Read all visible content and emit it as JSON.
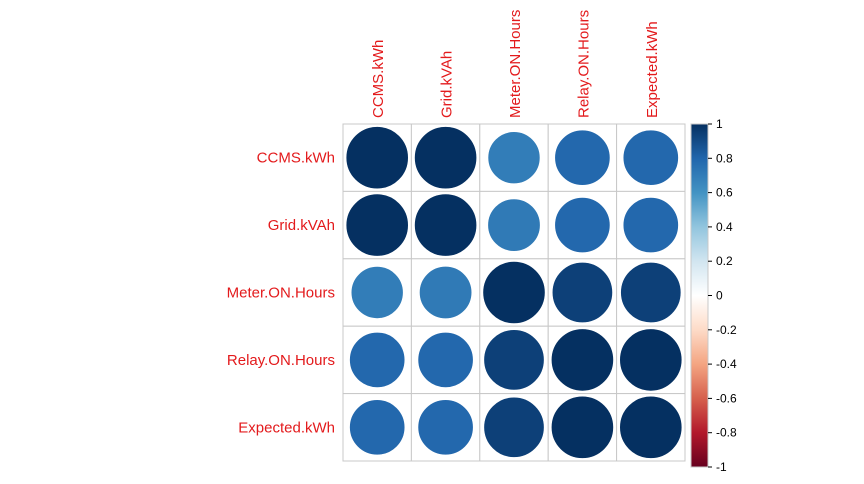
{
  "chart_data": {
    "type": "heatmap",
    "title": "",
    "variables": [
      "CCMS.kWh",
      "Grid.kVAh",
      "Meter.ON.Hours",
      "Relay.ON.Hours",
      "Expected.kWh"
    ],
    "matrix": [
      [
        1.0,
        1.0,
        0.7,
        0.79,
        0.79
      ],
      [
        1.0,
        1.0,
        0.71,
        0.79,
        0.79
      ],
      [
        0.7,
        0.71,
        1.0,
        0.94,
        0.94
      ],
      [
        0.79,
        0.79,
        0.94,
        1.0,
        1.0
      ],
      [
        0.79,
        0.79,
        0.94,
        1.0,
        1.0
      ]
    ],
    "value_range": [
      -1,
      1
    ],
    "colorbar": {
      "ticks": [
        "1",
        "0.8",
        "0.6",
        "0.4",
        "0.2",
        "0",
        "-0.2",
        "-0.4",
        "-0.6",
        "-0.8",
        "-1"
      ],
      "colors": [
        "#67001f",
        "#b2182b",
        "#d6604d",
        "#f4a582",
        "#fddbc7",
        "#ffffff",
        "#d1e5f0",
        "#92c5de",
        "#4393c3",
        "#2166ac",
        "#053061"
      ]
    },
    "label_color": "#e31a1c",
    "grid": true,
    "legend": "right"
  }
}
